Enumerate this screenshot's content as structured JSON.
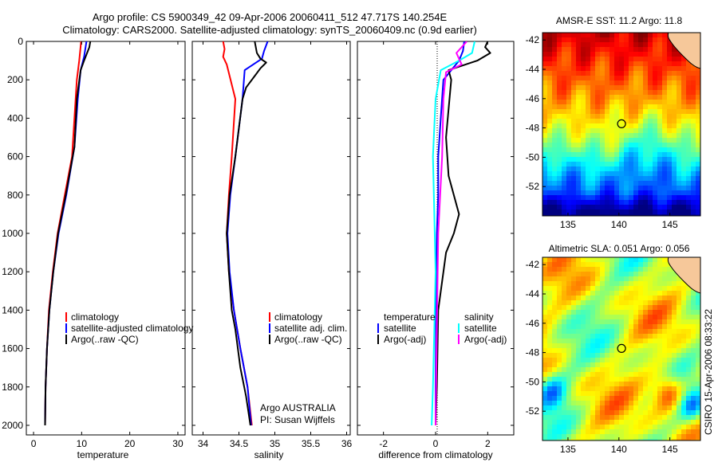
{
  "header": {
    "title_line1": "Argo profile: CS 5900349_42 09-Apr-2006 20060411_512 47.717S 140.254E",
    "title_line2": "Climatology: CARS2000. Satellite-adjusted climatology: synTS_20060409.nc (0.9d earlier)"
  },
  "chart_data": [
    {
      "type": "line",
      "title": "",
      "xlabel": "temperature",
      "ylabel": "",
      "xlim": [
        -1.5,
        31.5
      ],
      "ylim": [
        2050,
        0
      ],
      "xticks": [
        0,
        10,
        20,
        30
      ],
      "yticks": [
        0,
        200,
        400,
        600,
        800,
        1000,
        1200,
        1400,
        1600,
        1800,
        2000
      ],
      "series": [
        {
          "name": "climatology",
          "color": "#ff0000",
          "x": [
            9.9,
            9.5,
            9.0,
            8.5,
            8.0,
            6.5,
            5.0,
            4.0,
            3.2,
            2.8,
            2.5,
            2.4
          ],
          "y": [
            0,
            100,
            200,
            400,
            600,
            800,
            1000,
            1200,
            1400,
            1600,
            1800,
            2000
          ]
        },
        {
          "name": "satellite-adjusted climatology",
          "color": "#0000ff",
          "x": [
            11.0,
            10.5,
            9.8,
            9.2,
            8.5,
            6.8,
            5.2,
            4.1,
            3.3,
            2.8,
            2.5,
            2.4
          ],
          "y": [
            0,
            80,
            150,
            300,
            550,
            800,
            1000,
            1200,
            1400,
            1600,
            1800,
            2000
          ]
        },
        {
          "name": "Argo(..raw -QC)",
          "color": "#000000",
          "x": [
            11.8,
            11.6,
            10.5,
            9.8,
            9.0,
            8.5,
            6.7,
            5.1,
            4.1,
            3.3,
            2.8,
            2.5,
            2.4
          ],
          "y": [
            0,
            30,
            100,
            150,
            300,
            550,
            800,
            1000,
            1200,
            1400,
            1600,
            1800,
            2000
          ]
        }
      ],
      "legend": {
        "position": "lower-right",
        "entries": [
          "climatology",
          "satellite-adjusted climatology",
          "Argo(..raw -QC)"
        ]
      }
    },
    {
      "type": "line",
      "title": "",
      "xlabel": "salinity",
      "ylabel": "",
      "xlim": [
        33.85,
        36.05
      ],
      "ylim": [
        2050,
        0
      ],
      "xticks": [
        34,
        34.5,
        35,
        35.5,
        36
      ],
      "series": [
        {
          "name": "climatology",
          "color": "#ff0000",
          "x": [
            34.28,
            34.3,
            34.28,
            34.33,
            34.45,
            34.4,
            34.36,
            34.33,
            34.36,
            34.43,
            34.52,
            34.62,
            34.68
          ],
          "y": [
            0,
            40,
            80,
            120,
            300,
            600,
            800,
            1000,
            1200,
            1400,
            1600,
            1800,
            2000
          ]
        },
        {
          "name": "satellite adj. clim.",
          "color": "#0000ff",
          "x": [
            34.9,
            34.85,
            34.82,
            34.58,
            34.55,
            34.45,
            34.38,
            34.34,
            34.37,
            34.43,
            34.52,
            34.62,
            34.67
          ],
          "y": [
            0,
            50,
            90,
            150,
            300,
            600,
            800,
            1000,
            1200,
            1400,
            1600,
            1800,
            2000
          ]
        },
        {
          "name": "Argo(..raw -QC)",
          "color": "#000000",
          "x": [
            34.72,
            34.75,
            34.8,
            34.88,
            34.8,
            34.72,
            34.6,
            34.55,
            34.45,
            34.37,
            34.33,
            34.36,
            34.4,
            34.45,
            34.52,
            34.6,
            34.66
          ],
          "y": [
            0,
            60,
            90,
            110,
            140,
            180,
            240,
            300,
            600,
            800,
            1000,
            1200,
            1400,
            1500,
            1700,
            1850,
            2000
          ]
        }
      ],
      "legend": {
        "position": "lower-right",
        "entries": [
          "climatology",
          "satellite adj. clim.",
          "Argo(..raw -QC)"
        ]
      }
    },
    {
      "type": "line",
      "title": "",
      "xlabel": "difference from climatology",
      "ylabel": "",
      "xlim": [
        -3.0,
        3.0
      ],
      "ylim": [
        2050,
        0
      ],
      "xticks": [
        -2,
        0,
        2
      ],
      "reference_line": {
        "x": 0,
        "style": "dotted"
      },
      "series": [
        {
          "name": "temperature satellite",
          "color": "#0000ff",
          "x": [
            1.1,
            1.05,
            0.9,
            0.3,
            0.2,
            0.1,
            0.1,
            0.05,
            0.02,
            0.0,
            0.0
          ],
          "y": [
            0,
            50,
            100,
            200,
            400,
            600,
            800,
            1000,
            1400,
            1800,
            2000
          ]
        },
        {
          "name": "temperature Argo(-adj)",
          "color": "#000000",
          "x": [
            2.0,
            1.9,
            2.1,
            1.6,
            0.5,
            0.6,
            0.4,
            0.5,
            0.9,
            0.7,
            0.4,
            0.1,
            0.05,
            0.0
          ],
          "y": [
            0,
            30,
            60,
            100,
            150,
            200,
            500,
            700,
            900,
            1000,
            1100,
            1400,
            1800,
            2000
          ]
        },
        {
          "name": "salinity satellite",
          "color": "#00ffff",
          "x": [
            1.5,
            1.4,
            0.9,
            0.2,
            0.0,
            -0.1,
            -0.05,
            0.0,
            -0.05,
            -0.1,
            -0.15
          ],
          "y": [
            0,
            60,
            100,
            150,
            300,
            600,
            900,
            1200,
            1500,
            1800,
            2000
          ]
        },
        {
          "name": "salinity Argo(-adj)",
          "color": "#ff00ff",
          "x": [
            1.2,
            0.8,
            1.0,
            0.4,
            0.3,
            0.25,
            0.1,
            0.05,
            0.0
          ],
          "y": [
            0,
            60,
            120,
            160,
            300,
            600,
            1000,
            1500,
            2000
          ]
        }
      ],
      "legend": {
        "position": "lower-right",
        "headers": [
          "temperature",
          "salinity"
        ],
        "entries": [
          "satellite",
          "Argo(-adj)",
          "satellite",
          "Argo(-adj)"
        ]
      }
    },
    {
      "type": "heatmap",
      "title": "AMSR-E SST: 11.2  Argo: 11.8",
      "xlim": [
        132.5,
        148
      ],
      "ylim": [
        -54,
        -41.5
      ],
      "xticks": [
        135,
        140,
        145
      ],
      "xtick_labels": [
        "135",
        "140",
        "145"
      ],
      "yticks": [
        -42,
        -44,
        -46,
        -48,
        -50,
        -52
      ],
      "ytick_labels": [
        "-42",
        "-44",
        "-46",
        "-48",
        "-50",
        "-52"
      ],
      "marker": {
        "lon": 140.254,
        "lat": -47.717,
        "shape": "circle"
      },
      "land": "Tasmania",
      "colormap": "jet",
      "pattern": "meridional gradient: warm (red/orange) north, cool (blue) south"
    },
    {
      "type": "heatmap",
      "title": "Altimetric SLA: 0.051  Argo: 0.056",
      "xlim": [
        132.5,
        148
      ],
      "ylim": [
        -54,
        -41.5
      ],
      "xticks": [
        135,
        140,
        145
      ],
      "xtick_labels": [
        "135",
        "140",
        "145"
      ],
      "yticks": [
        -42,
        -44,
        -46,
        -48,
        -50,
        -52
      ],
      "ytick_labels": [
        "-42",
        "-44",
        "-46",
        "-48",
        "-50",
        "-52"
      ],
      "marker": {
        "lon": 140.254,
        "lat": -47.717,
        "shape": "circle"
      },
      "land": "Tasmania",
      "colormap": "jet",
      "pattern": "patchy green/yellow eddies"
    }
  ],
  "annotations": {
    "credit_line1": "Argo AUSTRALIA",
    "credit_line2": "PI: Susan Wijffels",
    "side_stamp": "CSIRO 15-Apr-2006 08:33:22"
  },
  "colors": {
    "red": "#ff0000",
    "blue": "#0000ff",
    "black": "#000000",
    "cyan": "#00ffff",
    "magenta": "#ff00ff",
    "land": "#f6c89a"
  }
}
